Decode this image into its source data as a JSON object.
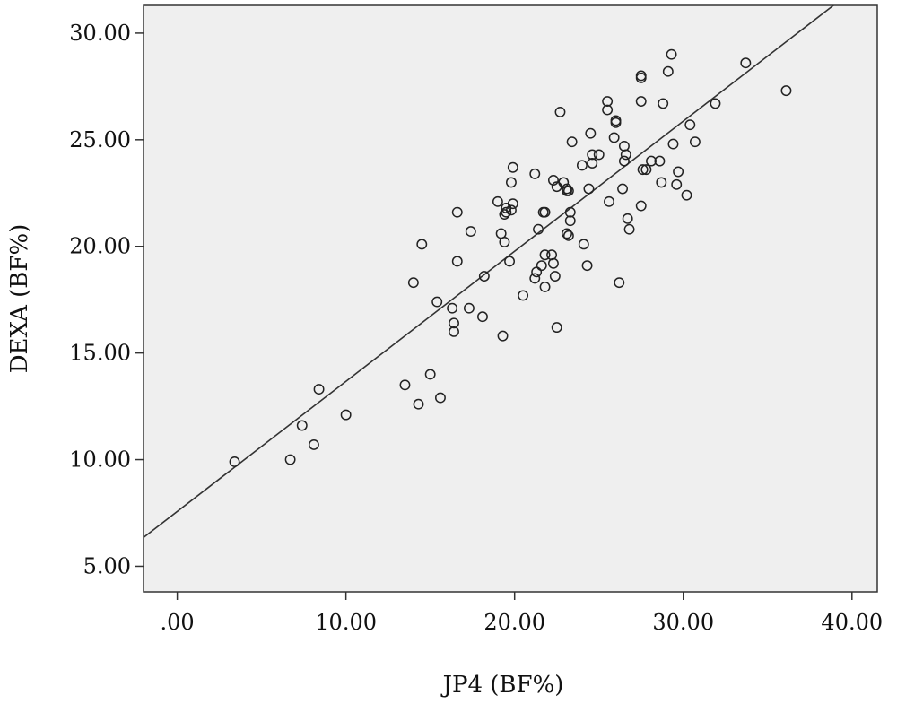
{
  "chart_data": {
    "type": "scatter",
    "title": "",
    "xlabel": "JP4 (BF%)",
    "ylabel": "DEXA (BF%)",
    "xlim": [
      -2,
      41.5
    ],
    "ylim": [
      3.8,
      31.3
    ],
    "x_ticks": [
      0,
      10,
      20,
      30,
      40
    ],
    "x_tick_labels": [
      ".00",
      "10.00",
      "20.00",
      "30.00",
      "40.00"
    ],
    "y_ticks": [
      5,
      10,
      15,
      20,
      25,
      30
    ],
    "y_tick_labels": [
      "5.00",
      "10.00",
      "15.00",
      "20.00",
      "25.00",
      "30.00"
    ],
    "grid": false,
    "colors": {
      "plot_background": "#efefef",
      "marker": "#222222",
      "line": "#333333"
    },
    "fit_line": {
      "x": [
        -2,
        38.9
      ],
      "y": [
        6.35,
        31.3
      ]
    },
    "points": [
      [
        3.4,
        9.9
      ],
      [
        6.7,
        10.0
      ],
      [
        7.4,
        11.6
      ],
      [
        8.1,
        10.7
      ],
      [
        8.4,
        13.3
      ],
      [
        10.0,
        12.1
      ],
      [
        13.5,
        13.5
      ],
      [
        14.3,
        12.6
      ],
      [
        15.0,
        14.0
      ],
      [
        15.6,
        12.9
      ],
      [
        14.0,
        18.3
      ],
      [
        14.5,
        20.1
      ],
      [
        15.4,
        17.4
      ],
      [
        16.3,
        17.1
      ],
      [
        16.4,
        16.4
      ],
      [
        16.4,
        16.0
      ],
      [
        16.6,
        21.6
      ],
      [
        16.6,
        19.3
      ],
      [
        17.3,
        17.1
      ],
      [
        17.4,
        20.7
      ],
      [
        18.2,
        18.6
      ],
      [
        18.1,
        16.7
      ],
      [
        19.3,
        15.8
      ],
      [
        19.0,
        22.1
      ],
      [
        19.2,
        20.6
      ],
      [
        19.4,
        20.2
      ],
      [
        19.5,
        21.8
      ],
      [
        19.4,
        21.5
      ],
      [
        19.5,
        21.6
      ],
      [
        19.7,
        19.3
      ],
      [
        19.8,
        23.0
      ],
      [
        19.9,
        23.7
      ],
      [
        19.9,
        22.0
      ],
      [
        19.8,
        21.7
      ],
      [
        20.5,
        17.7
      ],
      [
        21.2,
        23.4
      ],
      [
        21.2,
        18.5
      ],
      [
        21.3,
        18.8
      ],
      [
        21.4,
        20.8
      ],
      [
        21.6,
        19.1
      ],
      [
        21.8,
        18.1
      ],
      [
        21.8,
        21.6
      ],
      [
        21.7,
        21.6
      ],
      [
        21.8,
        19.6
      ],
      [
        22.2,
        19.6
      ],
      [
        22.3,
        19.2
      ],
      [
        22.4,
        18.6
      ],
      [
        22.5,
        16.2
      ],
      [
        22.3,
        23.1
      ],
      [
        22.5,
        22.8
      ],
      [
        22.7,
        26.3
      ],
      [
        22.9,
        23.0
      ],
      [
        23.1,
        22.6
      ],
      [
        23.1,
        22.7
      ],
      [
        23.2,
        22.6
      ],
      [
        23.2,
        20.5
      ],
      [
        23.3,
        21.6
      ],
      [
        23.3,
        21.2
      ],
      [
        23.1,
        20.6
      ],
      [
        23.4,
        24.9
      ],
      [
        24.0,
        23.8
      ],
      [
        24.1,
        20.1
      ],
      [
        24.3,
        19.1
      ],
      [
        24.4,
        22.7
      ],
      [
        24.5,
        25.3
      ],
      [
        24.6,
        24.3
      ],
      [
        24.6,
        23.9
      ],
      [
        25.0,
        24.3
      ],
      [
        25.5,
        26.8
      ],
      [
        25.5,
        26.4
      ],
      [
        25.6,
        22.1
      ],
      [
        25.9,
        25.1
      ],
      [
        26.0,
        25.8
      ],
      [
        26.0,
        25.9
      ],
      [
        26.2,
        18.3
      ],
      [
        26.4,
        22.7
      ],
      [
        26.5,
        24.7
      ],
      [
        26.6,
        24.3
      ],
      [
        26.5,
        24.0
      ],
      [
        26.7,
        21.3
      ],
      [
        26.8,
        20.8
      ],
      [
        27.5,
        28.0
      ],
      [
        27.5,
        27.9
      ],
      [
        27.5,
        26.8
      ],
      [
        27.5,
        21.9
      ],
      [
        27.6,
        23.6
      ],
      [
        27.8,
        23.6
      ],
      [
        28.1,
        24.0
      ],
      [
        28.6,
        24.0
      ],
      [
        28.7,
        23.0
      ],
      [
        28.8,
        26.7
      ],
      [
        29.1,
        28.2
      ],
      [
        29.3,
        29.0
      ],
      [
        29.4,
        24.8
      ],
      [
        29.6,
        22.9
      ],
      [
        29.7,
        23.5
      ],
      [
        30.2,
        22.4
      ],
      [
        30.4,
        25.7
      ],
      [
        30.7,
        24.9
      ],
      [
        31.9,
        26.7
      ],
      [
        33.7,
        28.6
      ],
      [
        36.1,
        27.3
      ]
    ]
  }
}
